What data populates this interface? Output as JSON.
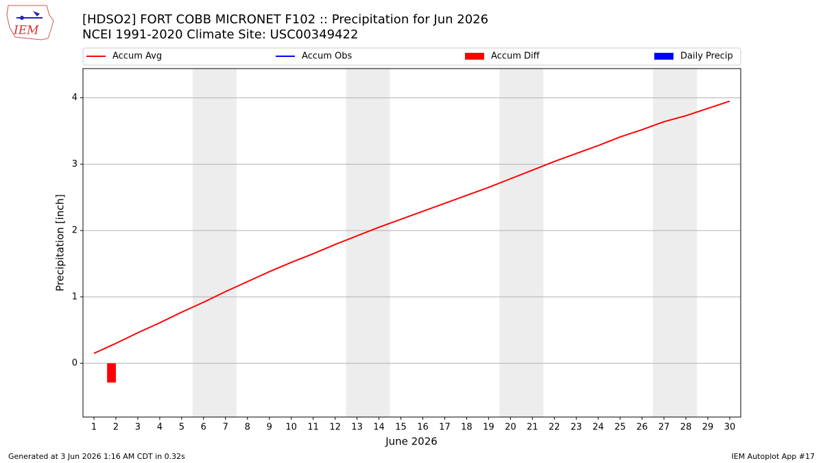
{
  "logo_text": "IEM",
  "footer_left": "Generated at 3 Jun 2026 1:16 AM CDT in 0.32s",
  "footer_right": "IEM Autoplot App #17",
  "chart_data": {
    "type": "line",
    "title": "[HDSO2] FORT COBB MICRONET F102 :: Precipitation for Jun 2026",
    "subtitle": "NCEI 1991-2020 Climate Site: USC00349422",
    "x_label": "June 2026",
    "y_label": "Precipitation [inch]",
    "x": [
      1,
      2,
      3,
      4,
      5,
      6,
      7,
      8,
      9,
      10,
      11,
      12,
      13,
      14,
      15,
      16,
      17,
      18,
      19,
      20,
      21,
      22,
      23,
      24,
      25,
      26,
      27,
      28,
      29,
      30
    ],
    "xlim": [
      0.5,
      30.5
    ],
    "xticks": [
      1,
      2,
      3,
      4,
      5,
      6,
      7,
      8,
      9,
      10,
      11,
      12,
      13,
      14,
      15,
      16,
      17,
      18,
      19,
      20,
      21,
      22,
      23,
      24,
      25,
      26,
      27,
      28,
      29,
      30
    ],
    "ylim": [
      -0.81,
      4.44
    ],
    "yticks": [
      0,
      1,
      2,
      3,
      4
    ],
    "grid": true,
    "shaded_spans": [
      [
        5.5,
        7.5
      ],
      [
        12.5,
        14.5
      ],
      [
        19.5,
        21.5
      ],
      [
        26.5,
        28.5
      ]
    ],
    "series": [
      {
        "name": "Accum Avg",
        "kind": "line",
        "color": "#ff0000",
        "values": [
          0.15,
          0.3,
          0.46,
          0.61,
          0.77,
          0.92,
          1.08,
          1.23,
          1.38,
          1.52,
          1.65,
          1.79,
          1.92,
          2.05,
          2.17,
          2.29,
          2.41,
          2.53,
          2.65,
          2.78,
          2.91,
          3.04,
          3.16,
          3.28,
          3.41,
          3.52,
          3.64,
          3.73,
          3.84,
          3.95
        ]
      },
      {
        "name": "Accum Obs",
        "kind": "line",
        "color": "#0000ff",
        "values": [
          null,
          null,
          null,
          null,
          null,
          null,
          null,
          null,
          null,
          null,
          null,
          null,
          null,
          null,
          null,
          null,
          null,
          null,
          null,
          null,
          null,
          null,
          null,
          null,
          null,
          null,
          null,
          null,
          null,
          null
        ]
      },
      {
        "name": "Accum Diff",
        "kind": "bar",
        "color": "#ff0000",
        "values": [
          null,
          -0.29,
          null,
          null,
          null,
          null,
          null,
          null,
          null,
          null,
          null,
          null,
          null,
          null,
          null,
          null,
          null,
          null,
          null,
          null,
          null,
          null,
          null,
          null,
          null,
          null,
          null,
          null,
          null,
          null
        ]
      },
      {
        "name": "Daily Precip",
        "kind": "bar",
        "color": "#0000ff",
        "values": [
          null,
          null,
          null,
          null,
          null,
          null,
          null,
          null,
          null,
          null,
          null,
          null,
          null,
          null,
          null,
          null,
          null,
          null,
          null,
          null,
          null,
          null,
          null,
          null,
          null,
          null,
          null,
          null,
          null,
          null
        ]
      }
    ]
  }
}
